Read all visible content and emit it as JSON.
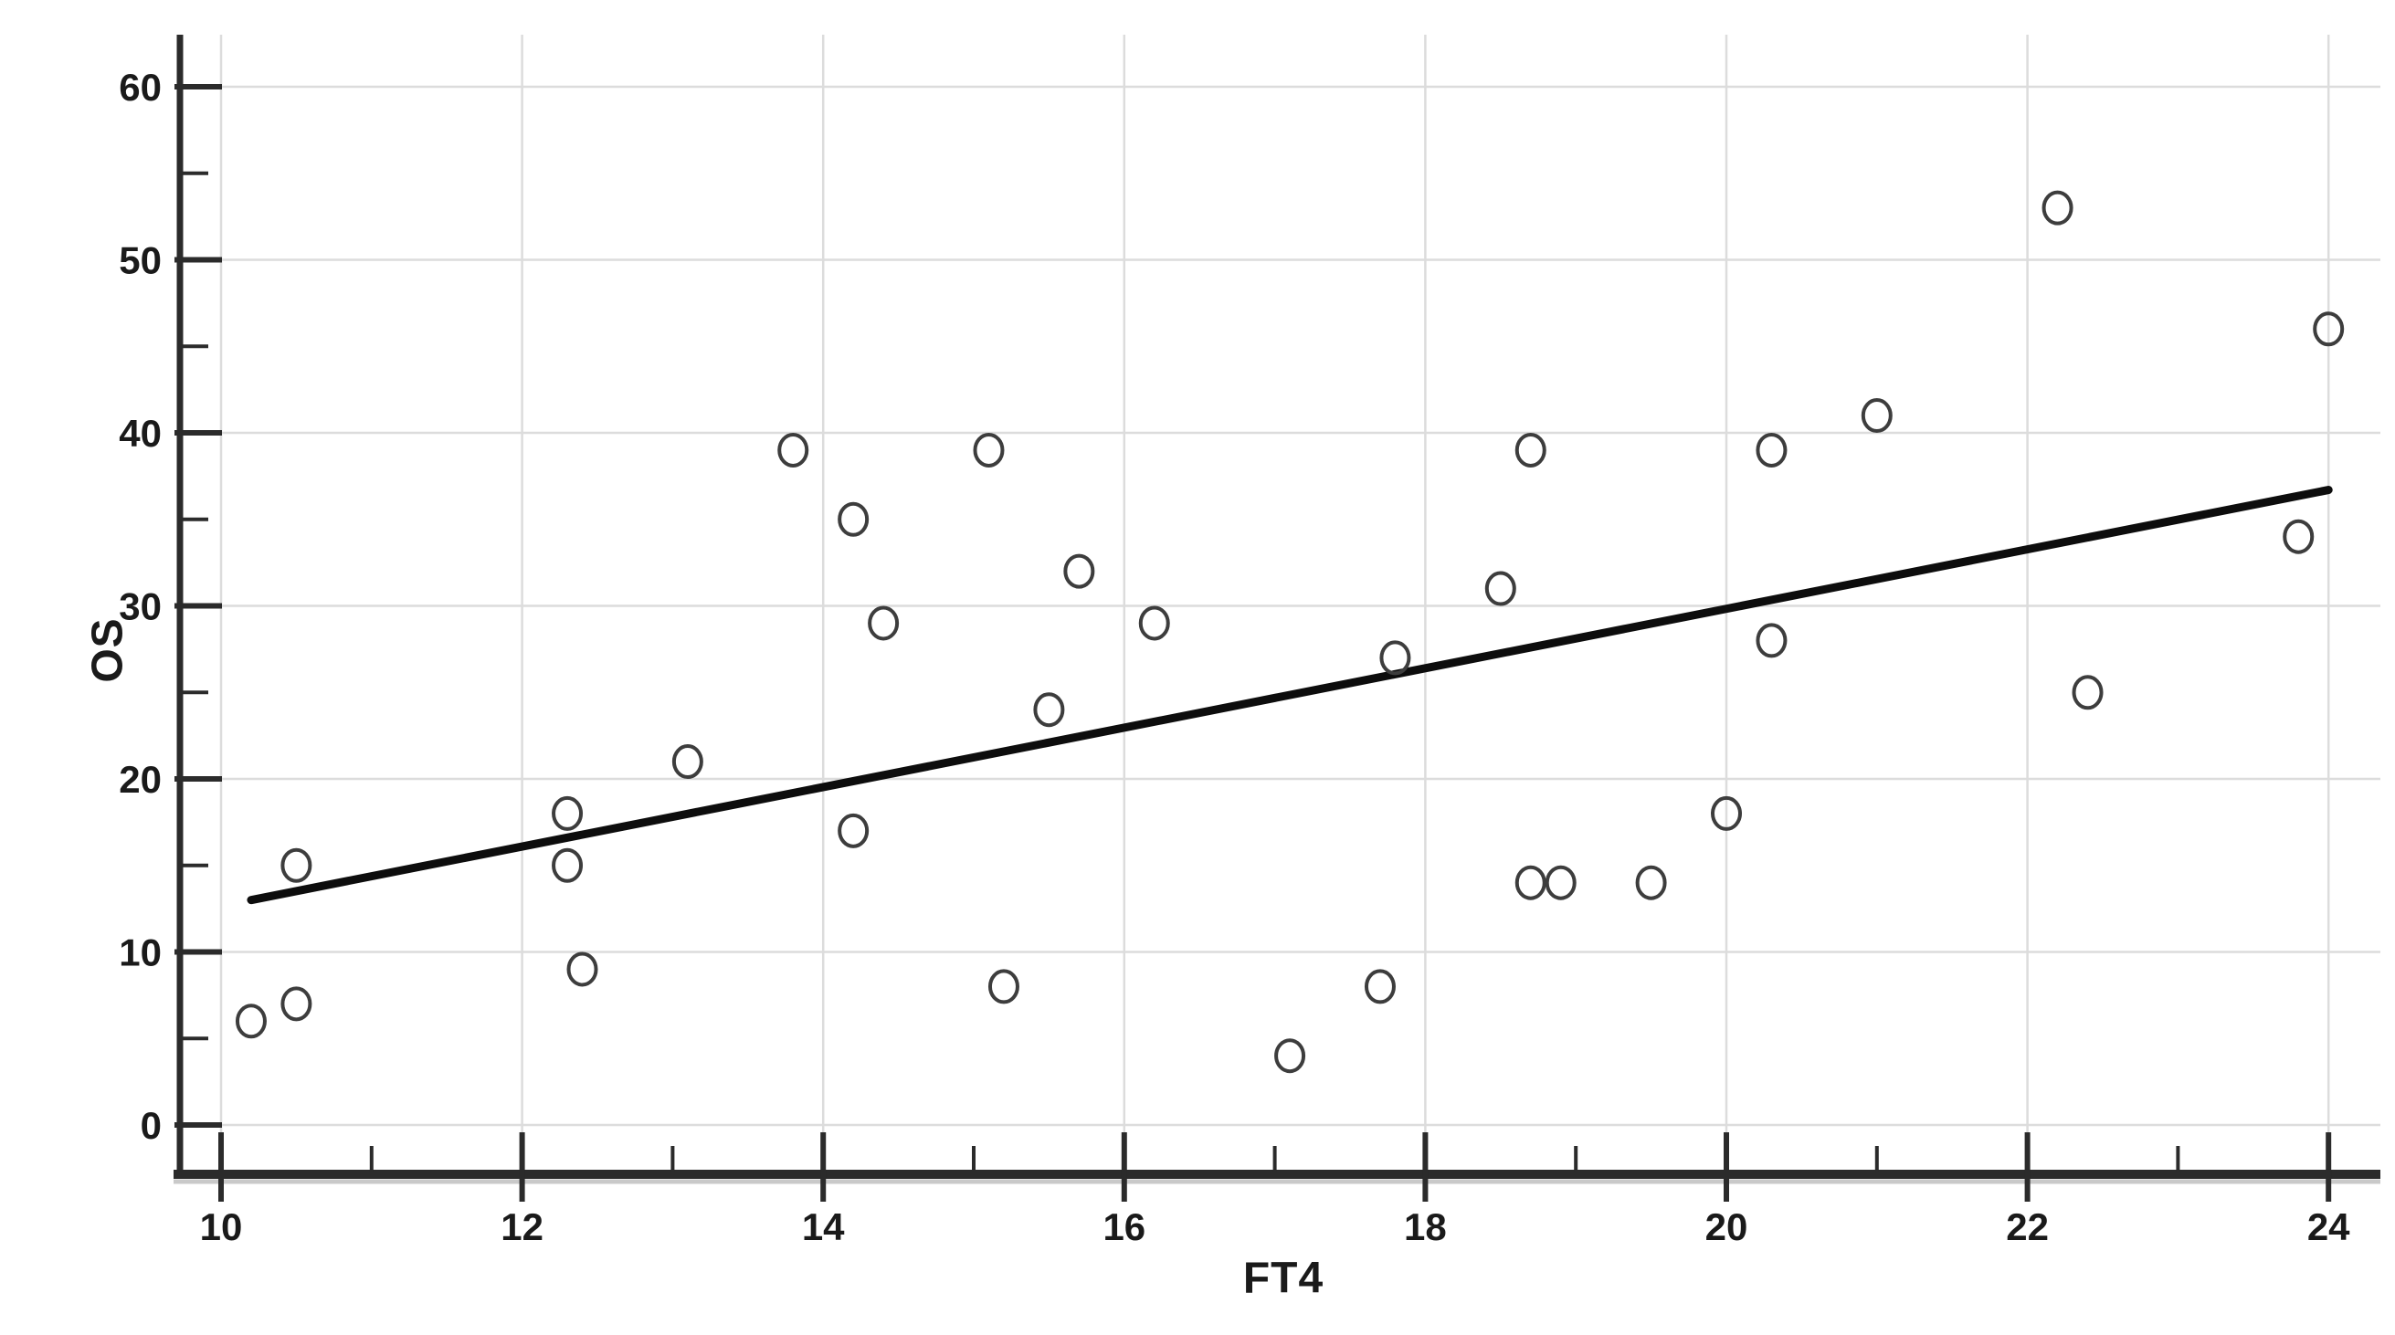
{
  "page": {
    "background": "#ffffff"
  },
  "chart_data": {
    "type": "scatter",
    "title": "",
    "xlabel": "FT4",
    "ylabel": "OS",
    "xlim": [
      10,
      24
    ],
    "ylim": [
      0,
      60
    ],
    "xticks": [
      10,
      12,
      14,
      16,
      18,
      20,
      22,
      24
    ],
    "xticks_minor": [
      11,
      13,
      15,
      17,
      19,
      21,
      23
    ],
    "yticks": [
      0,
      10,
      20,
      30,
      40,
      50,
      60
    ],
    "yticks_minor": [
      5,
      15,
      25,
      35,
      45,
      55
    ],
    "grid": "major",
    "legend": "none",
    "marker": "open-circle",
    "points": [
      [
        10.2,
        6
      ],
      [
        10.5,
        7
      ],
      [
        10.5,
        15
      ],
      [
        12.3,
        18
      ],
      [
        12.3,
        15
      ],
      [
        12.4,
        9
      ],
      [
        13.1,
        21
      ],
      [
        13.8,
        39
      ],
      [
        14.2,
        35
      ],
      [
        14.2,
        17
      ],
      [
        14.4,
        29
      ],
      [
        15.1,
        39
      ],
      [
        15.2,
        8
      ],
      [
        15.5,
        24
      ],
      [
        15.7,
        32
      ],
      [
        16.2,
        29
      ],
      [
        17.1,
        4
      ],
      [
        17.7,
        8
      ],
      [
        17.8,
        27
      ],
      [
        18.5,
        31
      ],
      [
        18.7,
        39
      ],
      [
        18.7,
        14
      ],
      [
        18.9,
        14
      ],
      [
        19.5,
        14
      ],
      [
        20.0,
        18
      ],
      [
        20.3,
        39
      ],
      [
        20.3,
        28
      ],
      [
        21.0,
        41
      ],
      [
        22.2,
        53
      ],
      [
        22.4,
        25
      ],
      [
        23.8,
        34
      ],
      [
        24.0,
        46
      ]
    ],
    "trendline": {
      "x1": 10.2,
      "y1": 13.0,
      "x2": 24.0,
      "y2": 36.7
    },
    "colors": {
      "background": "#ffffff",
      "gridline": "#dcdcdc",
      "axis": "#2b2b2b",
      "axis_shadow": "#c9c9c9",
      "tick": "#2b2b2b",
      "tick_label": "#1a1a1a",
      "marker_stroke": "#3d3d3d",
      "trendline": "#0d0d0d"
    }
  }
}
